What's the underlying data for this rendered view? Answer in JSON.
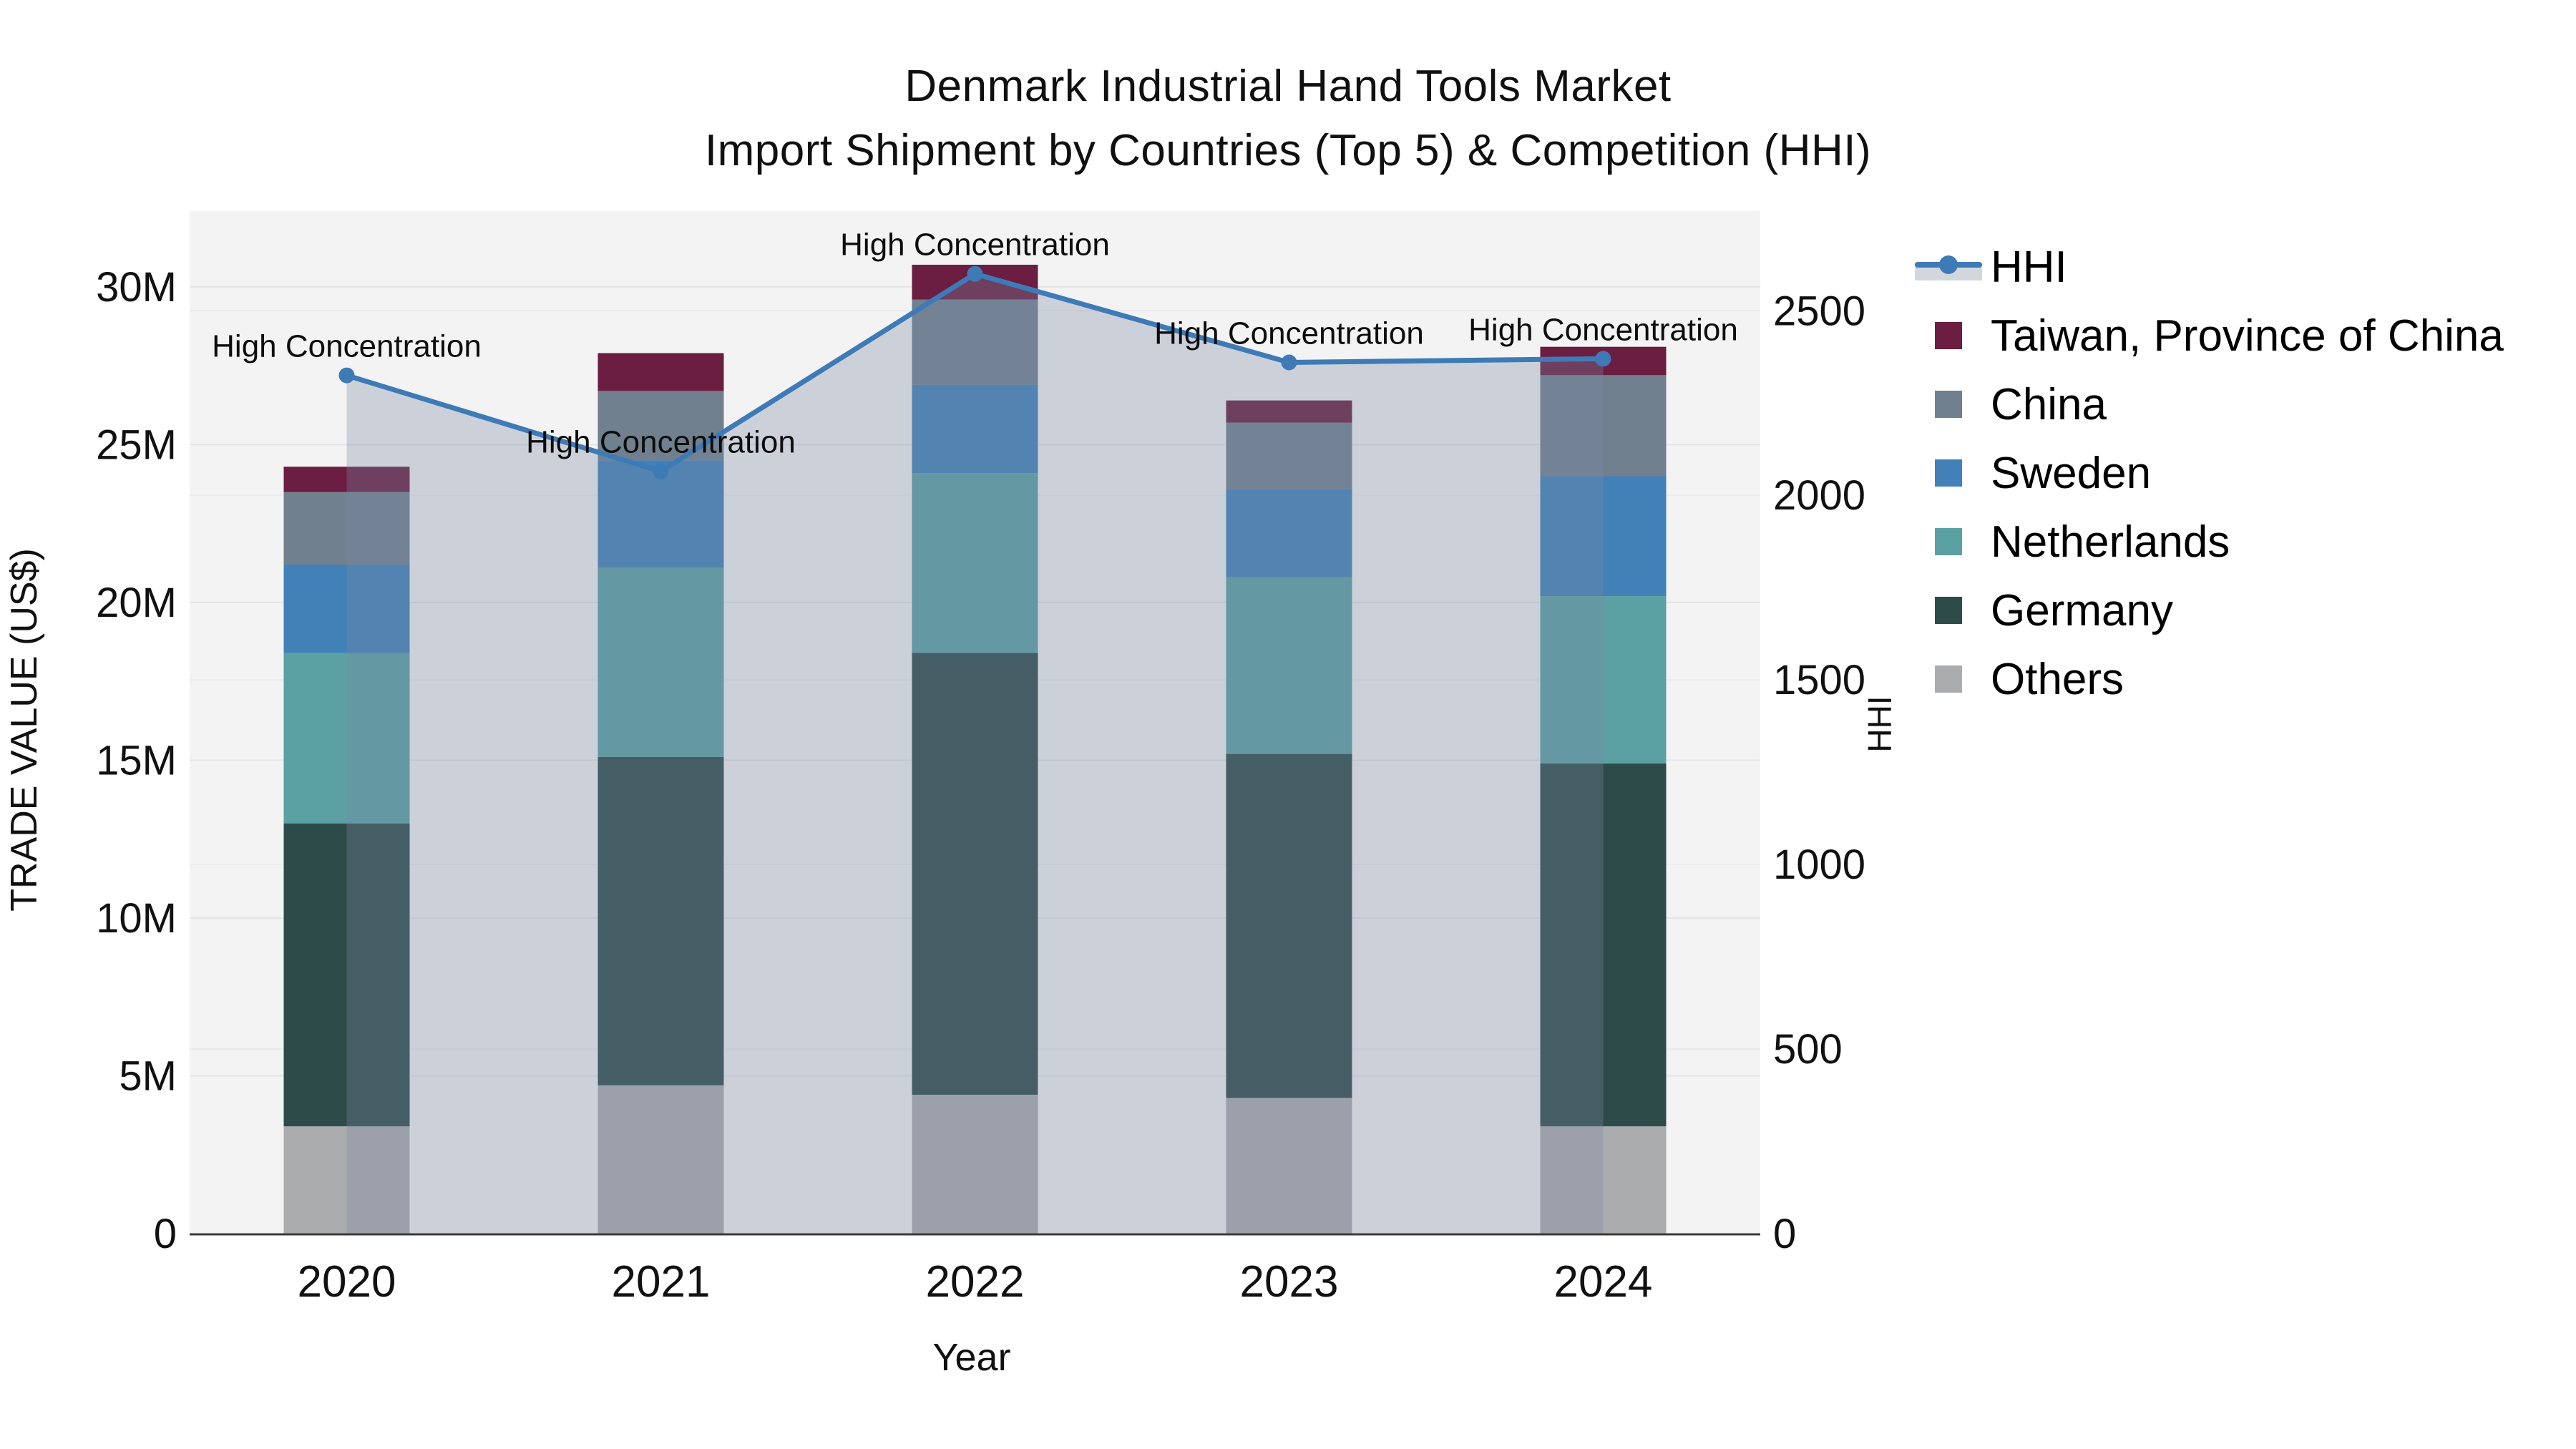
{
  "title": {
    "line1": "Denmark Industrial Hand Tools Market",
    "line2": "Import Shipment by Countries (Top 5) & Competition (HHI)"
  },
  "axes": {
    "x_label": "Year",
    "y_left_label": "TRADE VALUE (US$)",
    "y_right_label": "HHI",
    "y_left_ticks": [
      {
        "label": "0",
        "value": 0
      },
      {
        "label": "5M",
        "value": 5
      },
      {
        "label": "10M",
        "value": 10
      },
      {
        "label": "15M",
        "value": 15
      },
      {
        "label": "20M",
        "value": 20
      },
      {
        "label": "25M",
        "value": 25
      },
      {
        "label": "30M",
        "value": 30
      }
    ],
    "y_right_ticks": [
      {
        "label": "0",
        "value": 0
      },
      {
        "label": "500",
        "value": 500
      },
      {
        "label": "1000",
        "value": 1000
      },
      {
        "label": "1500",
        "value": 1500
      },
      {
        "label": "2000",
        "value": 2000
      },
      {
        "label": "2500",
        "value": 2500
      }
    ]
  },
  "chart_data": {
    "type": "bar+line",
    "categories": [
      "2020",
      "2021",
      "2022",
      "2023",
      "2024"
    ],
    "stacked": true,
    "grid": true,
    "legend_position": "right",
    "ylabel_left": "TRADE VALUE (US$)",
    "ylabel_right": "HHI",
    "xlabel": "Year",
    "ylim_left_millions": [
      0,
      32.4
    ],
    "ylim_right": [
      0,
      2770
    ],
    "units_left": "US$ millions (values approximate, read from chart)",
    "series": [
      {
        "name": "Others",
        "color": "#abacae",
        "values": [
          3.4,
          4.7,
          4.4,
          4.3,
          3.4
        ]
      },
      {
        "name": "Germany",
        "color": "#2d4b49",
        "values": [
          9.6,
          10.4,
          14.0,
          10.9,
          11.5
        ]
      },
      {
        "name": "Netherlands",
        "color": "#5ba0a3",
        "values": [
          5.4,
          6.0,
          5.7,
          5.6,
          5.3
        ]
      },
      {
        "name": "Sweden",
        "color": "#4280b8",
        "values": [
          2.8,
          3.4,
          2.8,
          2.8,
          3.8
        ]
      },
      {
        "name": "China",
        "color": "#70808f",
        "values": [
          2.3,
          2.2,
          2.7,
          2.1,
          3.2
        ]
      },
      {
        "name": "Taiwan, Province of China",
        "color": "#6b1d42",
        "values": [
          0.8,
          1.2,
          1.1,
          0.7,
          0.9
        ]
      }
    ],
    "totals_millions": [
      24.3,
      27.9,
      30.7,
      26.4,
      28.1
    ],
    "line_series": {
      "name": "HHI",
      "color": "#3e7bb6",
      "fill_color": "rgba(122,138,163,0.32)",
      "values": [
        2325,
        2065,
        2600,
        2360,
        2370
      ]
    },
    "annotations": [
      {
        "text": "High Concentration",
        "category": "2020"
      },
      {
        "text": "High Concentration",
        "category": "2021"
      },
      {
        "text": "High Concentration",
        "category": "2022"
      },
      {
        "text": "High Concentration",
        "category": "2023"
      },
      {
        "text": "High Concentration",
        "category": "2024"
      }
    ]
  },
  "legend": {
    "items": [
      {
        "label": "HHI",
        "type": "line",
        "color": "#3e7bb6",
        "band": "#d2d6dd"
      },
      {
        "label": "Taiwan, Province of China",
        "type": "swatch",
        "color": "#6b1d42"
      },
      {
        "label": "China",
        "type": "swatch",
        "color": "#70808f"
      },
      {
        "label": "Sweden",
        "type": "swatch",
        "color": "#4280b8"
      },
      {
        "label": "Netherlands",
        "type": "swatch",
        "color": "#5ba0a3"
      },
      {
        "label": "Germany",
        "type": "swatch",
        "color": "#2d4b49"
      },
      {
        "label": "Others",
        "type": "swatch",
        "color": "#abacae"
      }
    ]
  },
  "colors": {
    "plot_background": "#f3f3f4",
    "grid_left": "#e4e5e8",
    "grid_right": "#eaebee",
    "axis_line": "#3a3a3a",
    "text": "#111111"
  }
}
